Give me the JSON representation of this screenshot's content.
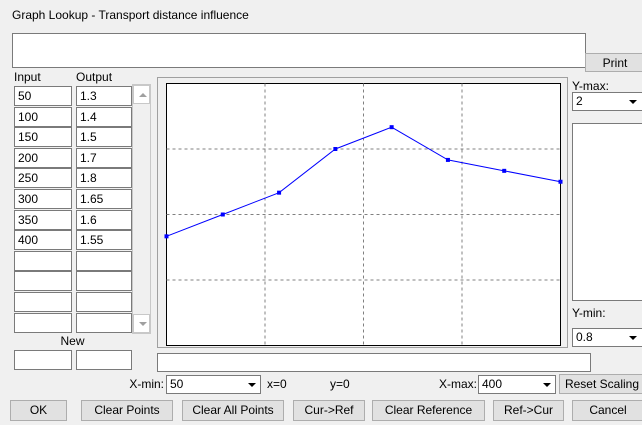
{
  "title": "Graph Lookup - Transport distance influence",
  "print_button": "Print",
  "table": {
    "headers": [
      "Input",
      "Output"
    ],
    "rows": [
      [
        50,
        1.3
      ],
      [
        100,
        1.4
      ],
      [
        150,
        1.5
      ],
      [
        200,
        1.7
      ],
      [
        250,
        1.8
      ],
      [
        300,
        1.65
      ],
      [
        350,
        1.6
      ],
      [
        400,
        1.55
      ]
    ],
    "new_label": "New"
  },
  "y_max": {
    "label": "Y-max:",
    "value": 2
  },
  "y_min": {
    "label": "Y-min:",
    "value": 0.8
  },
  "x_min": {
    "label": "X-min:",
    "value": 50
  },
  "x_max": {
    "label": "X-max:",
    "value": 400
  },
  "cursor": {
    "x": "x=0",
    "y": "y=0"
  },
  "reset_button": "Reset Scaling",
  "buttons": [
    "OK",
    "Clear Points",
    "Clear All Points",
    "Cur->Ref",
    "Clear Reference",
    "Ref->Cur",
    "Cancel"
  ]
}
